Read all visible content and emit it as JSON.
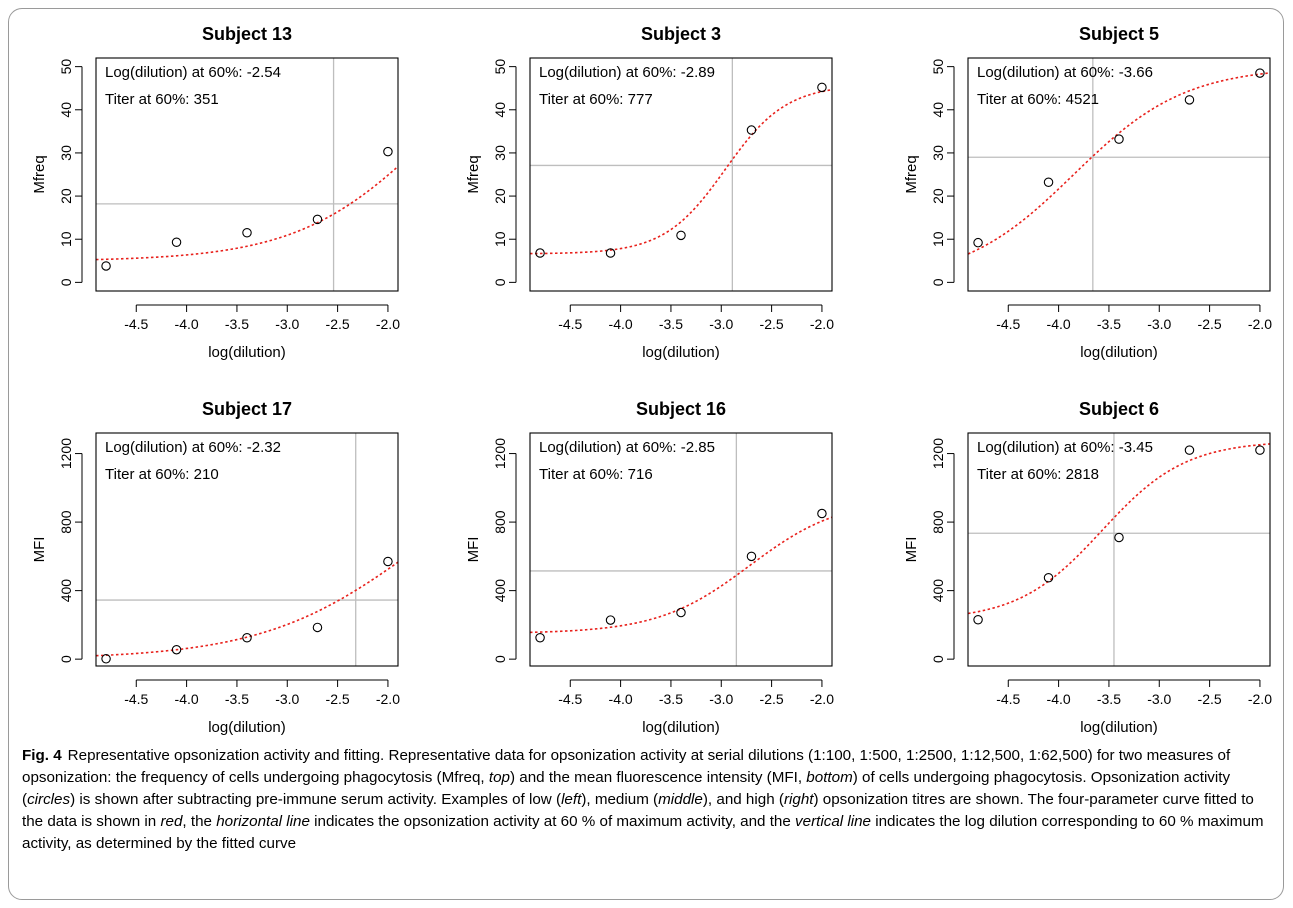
{
  "caption": {
    "label": "Fig. 4",
    "parts": [
      {
        "t": "Representative opsonization activity and fitting. Representative data for opsonization activity at serial dilutions (1:100, 1:500, 1:2500, 1:12,500, 1:62,500) for two measures of opsonization: the frequency of cells undergoing phagocytosis (Mfreq, ",
        "i": false
      },
      {
        "t": "top",
        "i": true
      },
      {
        "t": ") and the mean fluorescence intensity (MFI, ",
        "i": false
      },
      {
        "t": "bottom",
        "i": true
      },
      {
        "t": ") of cells undergoing phagocytosis. Opsonization activity (",
        "i": false
      },
      {
        "t": "circles",
        "i": true
      },
      {
        "t": ") is shown after subtracting pre-immune serum activity. Examples of low (",
        "i": false
      },
      {
        "t": "left",
        "i": true
      },
      {
        "t": "), medium (",
        "i": false
      },
      {
        "t": "middle",
        "i": true
      },
      {
        "t": "), and high (",
        "i": false
      },
      {
        "t": "right",
        "i": true
      },
      {
        "t": ") opsonization titres are shown. The four-parameter curve fitted to the data is shown in ",
        "i": false
      },
      {
        "t": "red",
        "i": true
      },
      {
        "t": ", the ",
        "i": false
      },
      {
        "t": "horizontal line",
        "i": true
      },
      {
        "t": " indicates the opsonization activity at 60 % of maximum activity, and the ",
        "i": false
      },
      {
        "t": "vertical line",
        "i": true
      },
      {
        "t": " indicates the log dilution corresponding to 60 % maximum activity, as determined by the fitted curve",
        "i": false
      }
    ]
  },
  "colors": {
    "fit": "#e8211c",
    "ref_line": "#bebebe",
    "axis": "#000000"
  },
  "chart_data": [
    {
      "type": "scatter",
      "title": "Subject 13",
      "xlabel": "log(dilution)",
      "ylabel": "Mfreq",
      "xlim": [
        -4.9,
        -1.9
      ],
      "ylim": [
        -2,
        52
      ],
      "xticks": [
        "-4.5",
        "-4.0",
        "-3.5",
        "-3.0",
        "-2.5",
        "-2.0"
      ],
      "yticks": [
        "0",
        "10",
        "20",
        "30",
        "40",
        "50"
      ],
      "x": [
        -4.8,
        -4.1,
        -3.4,
        -2.7,
        -2.0
      ],
      "y": [
        3.8,
        9.3,
        11.5,
        14.6,
        30.3
      ],
      "fit": {
        "bottom": 4.9,
        "top": 64,
        "ec50": -1.55,
        "hill": 1.5
      },
      "annotation": [
        "Log(dilution) at 60%: -2.54",
        "Titer at 60%: 351"
      ],
      "hline": 18.2,
      "vline": -2.54
    },
    {
      "type": "scatter",
      "title": "Subject 3",
      "xlabel": "log(dilution)",
      "ylabel": "Mfreq",
      "xlim": [
        -4.9,
        -1.9
      ],
      "ylim": [
        -2,
        52
      ],
      "xticks": [
        "-4.5",
        "-4.0",
        "-3.5",
        "-3.0",
        "-2.5",
        "-2.0"
      ],
      "yticks": [
        "0",
        "10",
        "20",
        "30",
        "40",
        "50"
      ],
      "x": [
        -4.8,
        -4.1,
        -3.4,
        -2.7,
        -2.0
      ],
      "y": [
        6.8,
        6.8,
        10.9,
        35.3,
        45.2
      ],
      "fit": {
        "bottom": 6.6,
        "top": 45.8,
        "ec50": -2.96,
        "hill": 3.3
      },
      "annotation": [
        "Log(dilution) at 60%: -2.89",
        "Titer at 60%: 777"
      ],
      "hline": 27.1,
      "vline": -2.89
    },
    {
      "type": "scatter",
      "title": "Subject 5",
      "xlabel": "log(dilution)",
      "ylabel": "Mfreq",
      "xlim": [
        -4.9,
        -1.9
      ],
      "ylim": [
        -2,
        52
      ],
      "xticks": [
        "-4.5",
        "-4.0",
        "-3.5",
        "-3.0",
        "-2.5",
        "-2.0"
      ],
      "yticks": [
        "0",
        "10",
        "20",
        "30",
        "40",
        "50"
      ],
      "x": [
        -4.8,
        -4.1,
        -3.4,
        -2.7,
        -2.0
      ],
      "y": [
        9.2,
        23.2,
        33.2,
        42.3,
        48.5
      ],
      "fit": {
        "bottom": 0,
        "top": 50,
        "ec50": -3.85,
        "hill": 1.8
      },
      "annotation": [
        "Log(dilution) at 60%: -3.66",
        "Titer at 60%: 4521"
      ],
      "hline": 29.0,
      "vline": -3.66
    },
    {
      "type": "scatter",
      "title": "Subject 17",
      "xlabel": "log(dilution)",
      "ylabel": "MFI",
      "xlim": [
        -4.9,
        -1.9
      ],
      "ylim": [
        -40,
        1320
      ],
      "xticks": [
        "-4.5",
        "-4.0",
        "-3.5",
        "-3.0",
        "-2.5",
        "-2.0"
      ],
      "yticks": [
        "0",
        "400",
        "800",
        "1200"
      ],
      "x": [
        -4.8,
        -4.1,
        -3.4,
        -2.7,
        -2.0
      ],
      "y": [
        2,
        55,
        125,
        185,
        570
      ],
      "fit": {
        "bottom": 0,
        "top": 1300,
        "ec50": -1.7,
        "hill": 1.3
      },
      "annotation": [
        "Log(dilution) at 60%: -2.32",
        "Titer at 60%: 210"
      ],
      "hline": 345,
      "vline": -2.32
    },
    {
      "type": "scatter",
      "title": "Subject 16",
      "xlabel": "log(dilution)",
      "ylabel": "MFI",
      "xlim": [
        -4.9,
        -1.9
      ],
      "ylim": [
        -40,
        1320
      ],
      "xticks": [
        "-4.5",
        "-4.0",
        "-3.5",
        "-3.0",
        "-2.5",
        "-2.0"
      ],
      "yticks": [
        "0",
        "400",
        "800",
        "1200"
      ],
      "x": [
        -4.8,
        -4.1,
        -3.4,
        -2.7,
        -2.0
      ],
      "y": [
        125,
        228,
        272,
        600,
        850
      ],
      "fit": {
        "bottom": 150,
        "top": 940,
        "ec50": -2.72,
        "hill": 2.2
      },
      "annotation": [
        "Log(dilution) at 60%: -2.85",
        "Titer at 60%: 716"
      ],
      "hline": 515,
      "vline": -2.85
    },
    {
      "type": "scatter",
      "title": "Subject 6",
      "xlabel": "log(dilution)",
      "ylabel": "MFI",
      "xlim": [
        -4.9,
        -1.9
      ],
      "ylim": [
        -40,
        1320
      ],
      "xticks": [
        "-4.5",
        "-4.0",
        "-3.5",
        "-3.0",
        "-2.5",
        "-2.0"
      ],
      "yticks": [
        "0",
        "400",
        "800",
        "1200"
      ],
      "x": [
        -4.8,
        -4.1,
        -3.4,
        -2.7,
        -2.0
      ],
      "y": [
        230,
        475,
        710,
        1220,
        1220
      ],
      "fit": {
        "bottom": 225,
        "top": 1275,
        "ec50": -3.57,
        "hill": 2.4
      },
      "annotation": [
        "Log(dilution) at 60%: -3.45",
        "Titer at 60%: 2818"
      ],
      "hline": 735,
      "vline": -3.45
    }
  ]
}
